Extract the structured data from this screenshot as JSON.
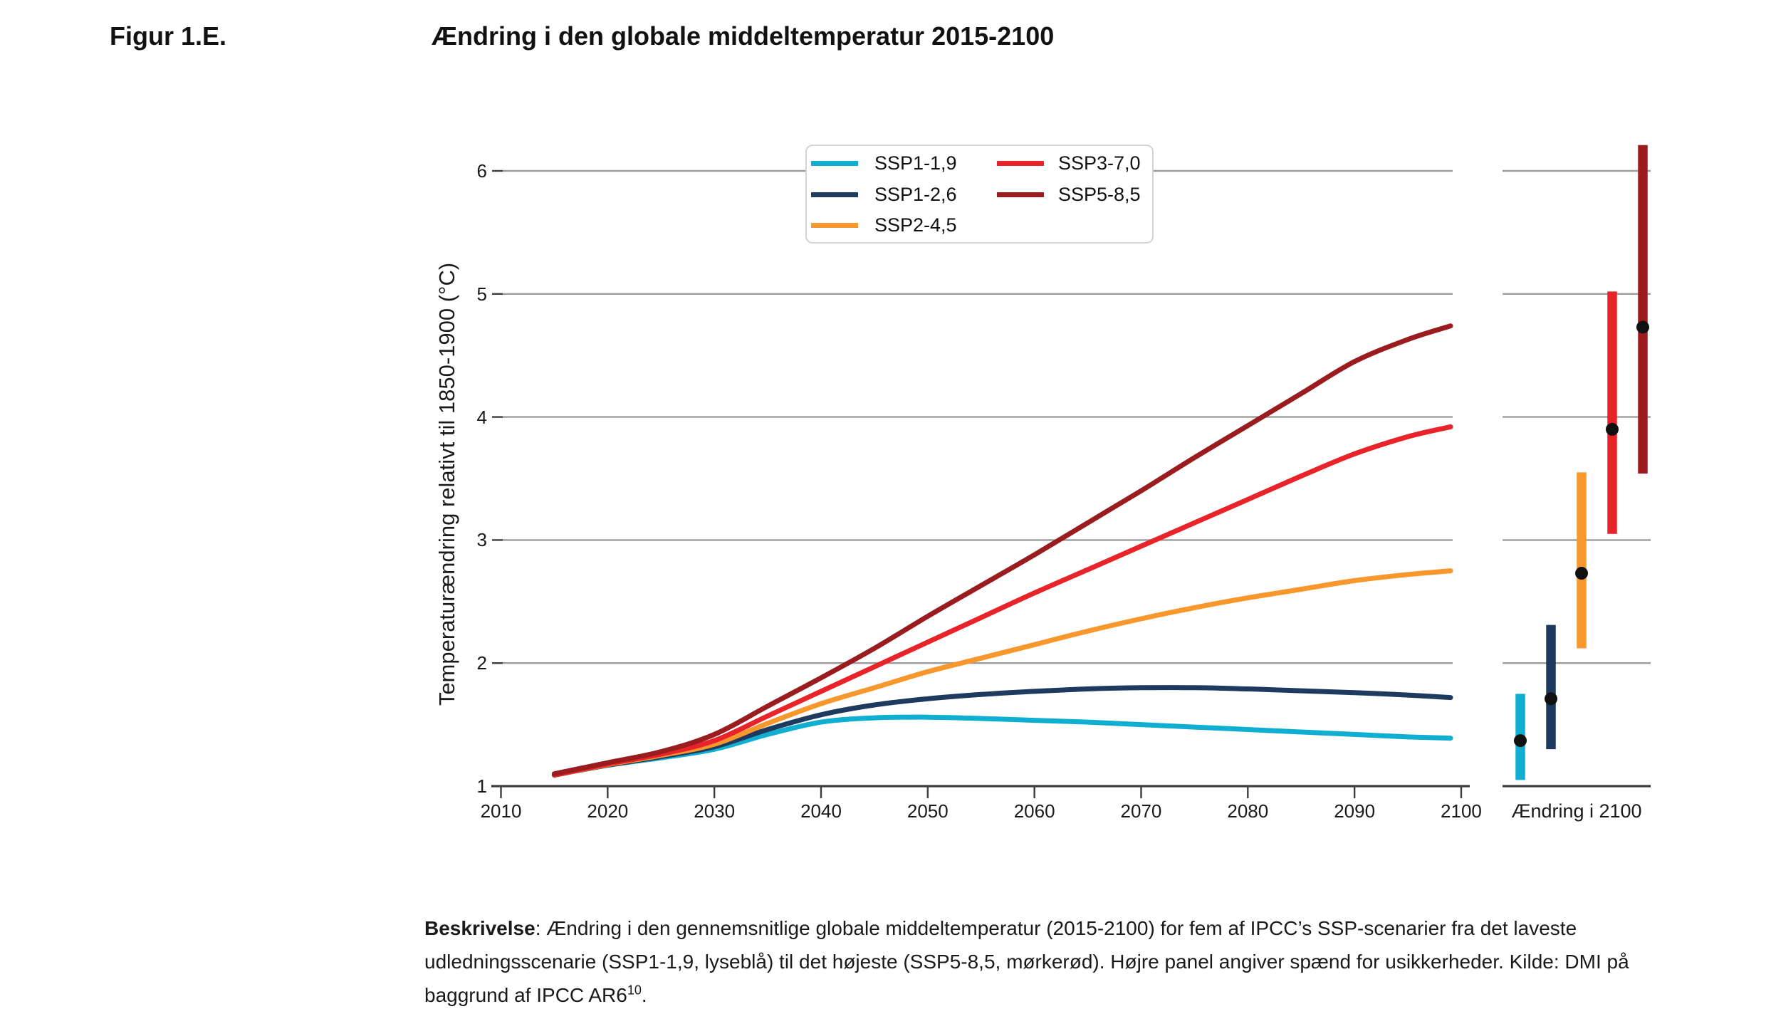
{
  "figure": {
    "label": "Figur 1.E.",
    "title": "Ændring i den globale middeltemperatur 2015-2100"
  },
  "chart_data": {
    "type": "line",
    "title": "Ændring i den globale middeltemperatur 2015-2100",
    "xlabel": "",
    "ylabel": "Temperaturændring relativt til 1850-1900 (°C)",
    "xlim": [
      2009,
      2101
    ],
    "ylim": [
      1,
      6.3
    ],
    "x_ticks": [
      2010,
      2020,
      2030,
      2040,
      2050,
      2060,
      2070,
      2080,
      2090,
      2100
    ],
    "y_ticks": [
      1,
      2,
      3,
      4,
      5,
      6
    ],
    "grid": "horizontal",
    "legend_position": "top-center-inside",
    "colors": {
      "gridline": "#9b9b9b",
      "axis": "#3d3d3d",
      "dot": "#111111"
    },
    "series": [
      {
        "name": "SSP1-1,9",
        "color": "#10AFD1",
        "points": [
          [
            2015,
            1.09
          ],
          [
            2020,
            1.17
          ],
          [
            2025,
            1.23
          ],
          [
            2030,
            1.3
          ],
          [
            2035,
            1.42
          ],
          [
            2040,
            1.52
          ],
          [
            2045,
            1.555
          ],
          [
            2050,
            1.56
          ],
          [
            2055,
            1.55
          ],
          [
            2060,
            1.535
          ],
          [
            2065,
            1.52
          ],
          [
            2070,
            1.5
          ],
          [
            2075,
            1.48
          ],
          [
            2080,
            1.46
          ],
          [
            2085,
            1.44
          ],
          [
            2090,
            1.42
          ],
          [
            2095,
            1.4
          ],
          [
            2099,
            1.39
          ]
        ]
      },
      {
        "name": "SSP1-2,6",
        "color": "#1E3A5F",
        "points": [
          [
            2015,
            1.09
          ],
          [
            2020,
            1.17
          ],
          [
            2025,
            1.24
          ],
          [
            2030,
            1.32
          ],
          [
            2035,
            1.46
          ],
          [
            2040,
            1.58
          ],
          [
            2045,
            1.66
          ],
          [
            2050,
            1.71
          ],
          [
            2055,
            1.745
          ],
          [
            2060,
            1.77
          ],
          [
            2065,
            1.79
          ],
          [
            2070,
            1.8
          ],
          [
            2075,
            1.8
          ],
          [
            2080,
            1.79
          ],
          [
            2085,
            1.775
          ],
          [
            2090,
            1.76
          ],
          [
            2095,
            1.74
          ],
          [
            2099,
            1.72
          ]
        ]
      },
      {
        "name": "SSP2-4,5",
        "color": "#F8982C",
        "points": [
          [
            2015,
            1.09
          ],
          [
            2020,
            1.175
          ],
          [
            2025,
            1.25
          ],
          [
            2030,
            1.34
          ],
          [
            2035,
            1.51
          ],
          [
            2040,
            1.67
          ],
          [
            2045,
            1.8
          ],
          [
            2050,
            1.93
          ],
          [
            2055,
            2.04
          ],
          [
            2060,
            2.15
          ],
          [
            2065,
            2.26
          ],
          [
            2070,
            2.36
          ],
          [
            2075,
            2.45
          ],
          [
            2080,
            2.53
          ],
          [
            2085,
            2.6
          ],
          [
            2090,
            2.67
          ],
          [
            2095,
            2.72
          ],
          [
            2099,
            2.75
          ]
        ]
      },
      {
        "name": "SSP3-7,0",
        "color": "#E82329",
        "points": [
          [
            2015,
            1.09
          ],
          [
            2020,
            1.18
          ],
          [
            2025,
            1.26
          ],
          [
            2030,
            1.37
          ],
          [
            2035,
            1.57
          ],
          [
            2040,
            1.77
          ],
          [
            2045,
            1.97
          ],
          [
            2050,
            2.17
          ],
          [
            2055,
            2.37
          ],
          [
            2060,
            2.57
          ],
          [
            2065,
            2.76
          ],
          [
            2070,
            2.95
          ],
          [
            2075,
            3.14
          ],
          [
            2080,
            3.33
          ],
          [
            2085,
            3.52
          ],
          [
            2090,
            3.7
          ],
          [
            2095,
            3.84
          ],
          [
            2099,
            3.92
          ]
        ]
      },
      {
        "name": "SSP5-8,5",
        "color": "#9A1C1F",
        "points": [
          [
            2015,
            1.1
          ],
          [
            2020,
            1.19
          ],
          [
            2025,
            1.28
          ],
          [
            2030,
            1.42
          ],
          [
            2035,
            1.65
          ],
          [
            2040,
            1.88
          ],
          [
            2045,
            2.12
          ],
          [
            2050,
            2.38
          ],
          [
            2055,
            2.63
          ],
          [
            2060,
            2.88
          ],
          [
            2065,
            3.14
          ],
          [
            2070,
            3.4
          ],
          [
            2075,
            3.67
          ],
          [
            2080,
            3.93
          ],
          [
            2085,
            4.19
          ],
          [
            2090,
            4.45
          ],
          [
            2095,
            4.63
          ],
          [
            2099,
            4.74
          ]
        ]
      }
    ],
    "uncertainty_2100": {
      "label": "Ændring i 2100",
      "bars": [
        {
          "name": "SSP1-1,9",
          "color": "#10AFD1",
          "low": 1.05,
          "high": 1.75,
          "best": 1.37
        },
        {
          "name": "SSP1-2,6",
          "color": "#1E3A5F",
          "low": 1.3,
          "high": 2.31,
          "best": 1.71
        },
        {
          "name": "SSP2-4,5",
          "color": "#F8982C",
          "low": 2.12,
          "high": 3.55,
          "best": 2.73
        },
        {
          "name": "SSP3-7,0",
          "color": "#E82329",
          "low": 3.05,
          "high": 5.02,
          "best": 3.9
        },
        {
          "name": "SSP5-8,5",
          "color": "#9A1C1F",
          "low": 3.54,
          "high": 6.21,
          "best": 4.73
        }
      ]
    },
    "legend": [
      {
        "label": "SSP1-1,9",
        "color": "#10AFD1"
      },
      {
        "label": "SSP1-2,6",
        "color": "#1E3A5F"
      },
      {
        "label": "SSP2-4,5",
        "color": "#F8982C"
      },
      {
        "label": "SSP3-7,0",
        "color": "#E82329"
      },
      {
        "label": "SSP5-8,5",
        "color": "#9A1C1F"
      }
    ]
  },
  "description": {
    "lead": "Beskrivelse",
    "line1_rest": ": Ændring i den gennemsnitlige globale middeltemperatur (2015-2100) for fem af IPCC’s SSP-scenarier fra det laveste",
    "line2": "udledningsscenarie (SSP1-1,9, lyseblå) til det højeste (SSP5-8,5, mørkerød). Højre panel angiver spænd for usikkerheder. Kilde: DMI på",
    "line3": "baggrund af IPCC AR6",
    "line3_sup": "10",
    "line3_end": "."
  }
}
